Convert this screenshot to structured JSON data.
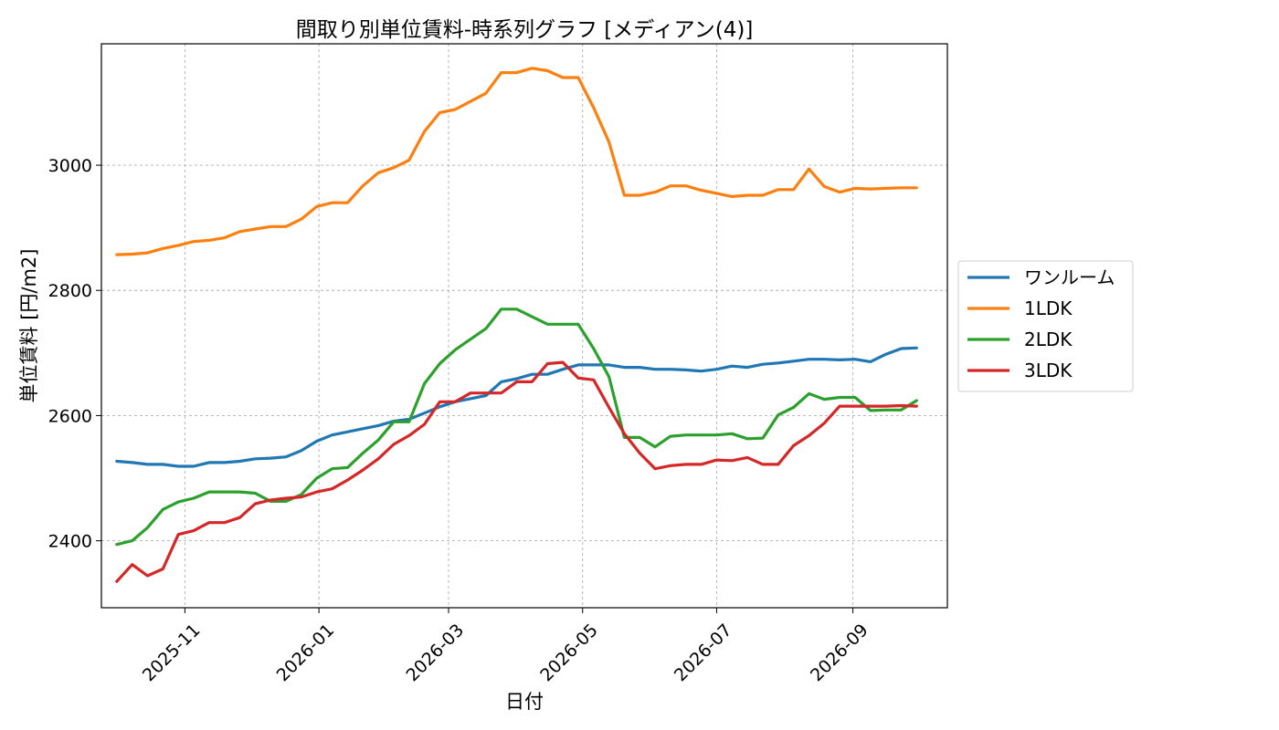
{
  "chart_data": {
    "type": "line",
    "title": "間取り別単位賃料-時系列グラフ [メディアン(4)]",
    "xlabel": "日付",
    "ylabel": "単位賃料 [円/m2]",
    "x_range": [
      "2025-09-24",
      "2026-10-14"
    ],
    "ylim": [
      2293,
      3194
    ],
    "y_ticks": [
      2400,
      2600,
      2800,
      3000
    ],
    "x_ticks": [
      "2025-11-01",
      "2026-01-01",
      "2026-03-01",
      "2026-05-01",
      "2026-07-01",
      "2026-09-01"
    ],
    "x_tick_labels": [
      "2025-11",
      "2026-01",
      "2026-03",
      "2026-05",
      "2026-07",
      "2026-09"
    ],
    "grid": true,
    "legend_position": "center-right-outside",
    "x": [
      "2025-10-01",
      "2025-10-08",
      "2025-10-15",
      "2025-10-22",
      "2025-10-29",
      "2025-11-05",
      "2025-11-12",
      "2025-11-19",
      "2025-11-26",
      "2025-12-03",
      "2025-12-10",
      "2025-12-17",
      "2025-12-24",
      "2025-12-31",
      "2026-01-07",
      "2026-01-14",
      "2026-01-21",
      "2026-01-28",
      "2026-02-04",
      "2026-02-11",
      "2026-02-18",
      "2026-02-25",
      "2026-03-04",
      "2026-03-11",
      "2026-03-18",
      "2026-03-25",
      "2026-04-01",
      "2026-04-08",
      "2026-04-15",
      "2026-04-22",
      "2026-04-29",
      "2026-05-06",
      "2026-05-13",
      "2026-05-20",
      "2026-05-27",
      "2026-06-03",
      "2026-06-10",
      "2026-06-17",
      "2026-06-24",
      "2026-07-01",
      "2026-07-08",
      "2026-07-15",
      "2026-07-22",
      "2026-07-29",
      "2026-08-05",
      "2026-08-12",
      "2026-08-19",
      "2026-08-26",
      "2026-09-02",
      "2026-09-09",
      "2026-09-16",
      "2026-09-23",
      "2026-09-30"
    ],
    "series": [
      {
        "name": "ワンルーム",
        "color": "#1f77b4",
        "values": [
          2527,
          2525,
          2522,
          2522,
          2519,
          2519,
          2525,
          2525,
          2527,
          2531,
          2532,
          2534,
          2544,
          2559,
          2569,
          2574,
          2579,
          2584,
          2591,
          2594,
          2604,
          2614,
          2622,
          2627,
          2632,
          2654,
          2659,
          2666,
          2666,
          2674,
          2681,
          2681,
          2681,
          2677,
          2677,
          2674,
          2674,
          2673,
          2671,
          2674,
          2679,
          2677,
          2682,
          2684,
          2687,
          2690,
          2690,
          2689,
          2690,
          2686,
          2698,
          2707,
          2708
        ]
      },
      {
        "name": "1LDK",
        "color": "#ff7f0e",
        "values": [
          2857,
          2858,
          2860,
          2867,
          2872,
          2878,
          2880,
          2884,
          2894,
          2898,
          2902,
          2902,
          2914,
          2934,
          2940,
          2940,
          2967,
          2988,
          2996,
          3008,
          3054,
          3084,
          3089,
          3102,
          3115,
          3148,
          3148,
          3155,
          3151,
          3140,
          3140,
          3092,
          3037,
          2952,
          2952,
          2957,
          2967,
          2967,
          2960,
          2955,
          2950,
          2952,
          2952,
          2961,
          2961,
          2994,
          2966,
          2957,
          2963,
          2962,
          2963,
          2964,
          2964
        ]
      },
      {
        "name": "2LDK",
        "color": "#2ca02c",
        "values": [
          2394,
          2400,
          2421,
          2450,
          2462,
          2468,
          2478,
          2478,
          2478,
          2476,
          2463,
          2463,
          2474,
          2500,
          2515,
          2517,
          2540,
          2561,
          2590,
          2590,
          2651,
          2683,
          2705,
          2722,
          2739,
          2770,
          2770,
          2758,
          2746,
          2746,
          2746,
          2707,
          2662,
          2565,
          2565,
          2550,
          2567,
          2569,
          2569,
          2569,
          2571,
          2563,
          2564,
          2601,
          2613,
          2635,
          2626,
          2629,
          2629,
          2608,
          2609,
          2609,
          2624
        ]
      },
      {
        "name": "3LDK",
        "color": "#d62728",
        "values": [
          2335,
          2362,
          2344,
          2355,
          2410,
          2416,
          2429,
          2429,
          2437,
          2459,
          2465,
          2468,
          2470,
          2478,
          2483,
          2497,
          2513,
          2531,
          2554,
          2568,
          2586,
          2622,
          2622,
          2636,
          2636,
          2636,
          2654,
          2654,
          2683,
          2685,
          2660,
          2657,
          2613,
          2571,
          2540,
          2515,
          2520,
          2522,
          2522,
          2529,
          2528,
          2533,
          2522,
          2522,
          2552,
          2568,
          2588,
          2615,
          2615,
          2615,
          2615,
          2616,
          2615
        ]
      }
    ]
  }
}
